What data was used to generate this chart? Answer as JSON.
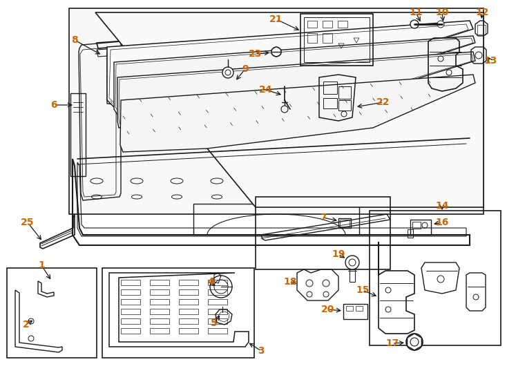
{
  "bg_color": "#ffffff",
  "line_color": "#1a1a1a",
  "number_color": "#cc6600",
  "fig_width": 7.34,
  "fig_height": 5.4,
  "dpi": 100,
  "number_fontsize": 10,
  "number_fontsize_small": 9,
  "lw_main": 1.2,
  "lw_thin": 0.7,
  "lw_thick": 1.5
}
